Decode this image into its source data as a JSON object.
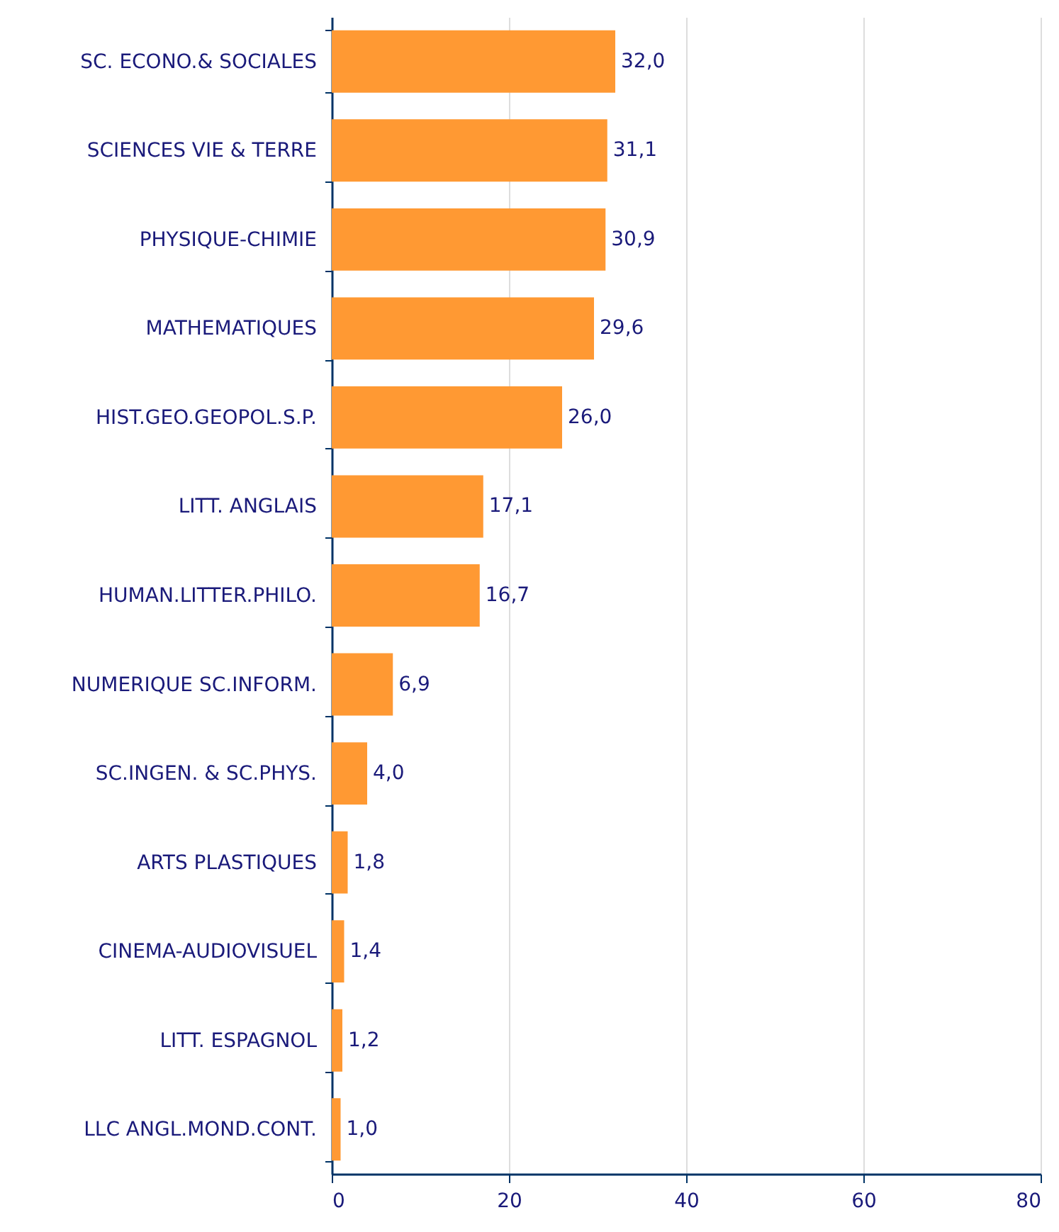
{
  "chart_data": {
    "type": "bar",
    "orientation": "horizontal",
    "categories": [
      "SC. ECONO.& SOCIALES",
      "SCIENCES VIE & TERRE",
      "PHYSIQUE-CHIMIE",
      "MATHEMATIQUES",
      "HIST.GEO.GEOPOL.S.P.",
      "LITT. ANGLAIS",
      "HUMAN.LITTER.PHILO.",
      "NUMERIQUE SC.INFORM.",
      "SC.INGEN. & SC.PHYS.",
      "ARTS PLASTIQUES",
      "CINEMA-AUDIOVISUEL",
      "LITT. ESPAGNOL",
      "LLC ANGL.MOND.CONT."
    ],
    "values": [
      32.0,
      31.1,
      30.9,
      29.6,
      26.0,
      17.1,
      16.7,
      6.9,
      4.0,
      1.8,
      1.4,
      1.2,
      1.0
    ],
    "value_labels": [
      "32,0",
      "31,1",
      "30,9",
      "29,6",
      "26,0",
      "17,1",
      "16,7",
      "6,9",
      "4,0",
      "1,8",
      "1,4",
      "1,2",
      "1,0"
    ],
    "color": "#ff9933",
    "xlim": [
      0,
      80
    ],
    "xticks": [
      0,
      20,
      40,
      60,
      80
    ],
    "grid": "x"
  }
}
